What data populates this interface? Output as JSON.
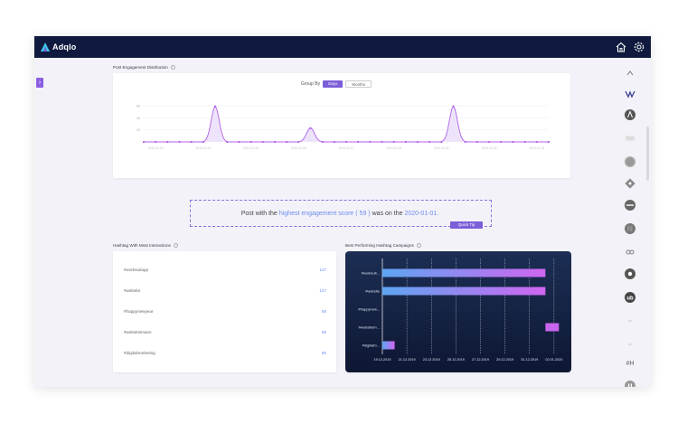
{
  "app": {
    "brand": "Adqlo",
    "colors": {
      "navy": "#0f1a3e",
      "accent": "#7c5ed8",
      "link": "#6b8cf0",
      "line": "#b060e8"
    }
  },
  "topbar": {
    "icons": [
      "home-icon",
      "gear-icon"
    ]
  },
  "engagement": {
    "title": "Post Engagement Distribution",
    "group_by_label": "Group By",
    "group_days": "Days",
    "group_months": "Months"
  },
  "chart_data": [
    {
      "type": "area",
      "title": "",
      "y_ticks": [
        "60",
        "40",
        "20"
      ],
      "ylim": [
        0,
        60
      ],
      "x_tick_labels": [
        "2019-12-19",
        "2019-12-21",
        "2019-12-23",
        "2019-12-25",
        "2019-12-27",
        "2019-12-29",
        "2019-12-31",
        "2020-01-02",
        "2020-01-04"
      ],
      "x_tick_positions": [
        1,
        5,
        9,
        13,
        17,
        21,
        25,
        29,
        33
      ],
      "x_index": [
        0,
        1,
        2,
        3,
        4,
        5,
        6,
        7,
        8,
        9,
        10,
        11,
        12,
        13,
        14,
        15,
        16,
        17,
        18,
        19,
        20,
        21,
        22,
        23,
        24,
        25,
        26,
        27,
        28,
        29,
        30,
        31,
        32,
        33,
        34
      ],
      "values": [
        0,
        0,
        0,
        0,
        0,
        0,
        59,
        0,
        0,
        0,
        0,
        0,
        0,
        0,
        23,
        0,
        0,
        0,
        0,
        0,
        0,
        0,
        0,
        0,
        0,
        0,
        59,
        0,
        0,
        0,
        0,
        0,
        0,
        0,
        0
      ],
      "grid": true
    },
    {
      "type": "bar",
      "title": "Best Performing Hashtag Campaigns",
      "orientation": "horizontal",
      "categories": [
        "#worksuit...",
        "#website",
        "#happynew...",
        "#websiteim...",
        "#digitalm..."
      ],
      "x_tick_labels": [
        "19.12.2019",
        "21.12.2019",
        "23.12.2019",
        "25.12.2019",
        "27.12.2019",
        "29.12.2019",
        "31.12.2019",
        "02.01.2020"
      ],
      "ranges": [
        [
          0,
          13.3
        ],
        [
          0,
          13.3
        ],
        [
          null,
          null
        ],
        [
          13.3,
          14.4
        ],
        [
          0,
          1.0
        ]
      ],
      "xlim": [
        0,
        14.6
      ],
      "grid": true
    }
  ],
  "tip": {
    "prefix": "Post with the",
    "highlight1": "highest engagement score ( 59 )",
    "middle": "was on the",
    "highlight2": "2020-01-01.",
    "badge": "Quick Tip"
  },
  "hashtag_interactions": {
    "title": "Hashtag With Most Interactions",
    "rows": [
      {
        "tag": "#worksuitapp",
        "count": "137"
      },
      {
        "tag": "#website",
        "count": "137"
      },
      {
        "tag": "#happynewyear",
        "count": "59"
      },
      {
        "tag": "#websiteimans",
        "count": "59"
      },
      {
        "tag": "#digitalmarketing",
        "count": "56"
      }
    ]
  },
  "campaigns": {
    "title": "Best Performing Hashtag Campaigns"
  },
  "rail": {
    "icons": [
      "chevron-up-icon",
      "brand-logo-icon",
      "a-circle-icon",
      "card-icon",
      "gray-circle-icon",
      "tag-icon",
      "dash-circle-icon",
      "grid-circle-icon",
      "link-icon",
      "dot-circle-icon",
      "ub-logo-icon",
      "chevron-small-icon",
      "chevron-small-icon",
      "hashtag-icon",
      "pause-circle-icon"
    ],
    "hashtag_text": "#H"
  }
}
